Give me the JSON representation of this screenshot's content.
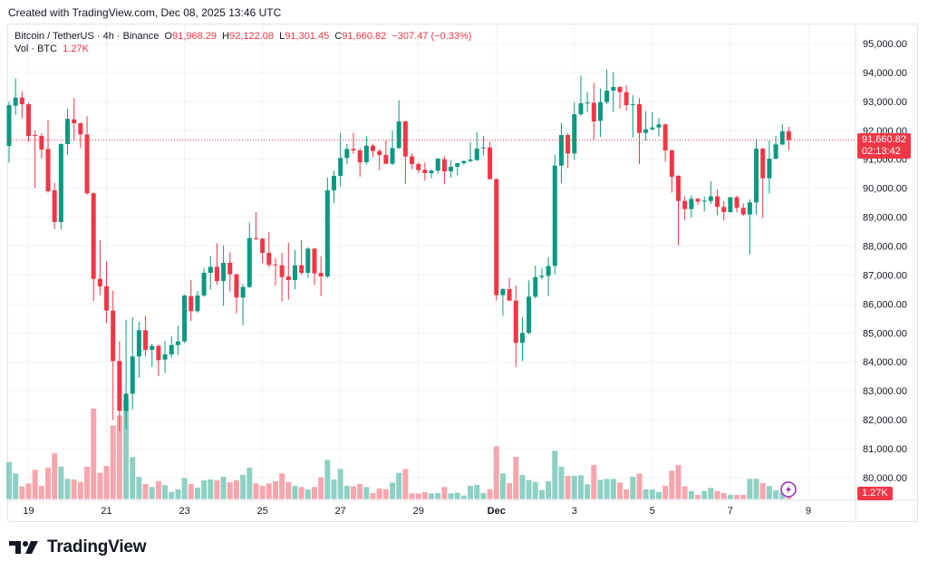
{
  "credit": "Created with TradingView.com, Dec 08, 2025 13:46 UTC",
  "legend": {
    "symbol": "Bitcoin / TetherUS · 4h · Binance",
    "o_label": "O",
    "o_value": "91,968.29",
    "h_label": "H",
    "h_value": "92,122.08",
    "l_label": "L",
    "l_value": "91,301.45",
    "c_label": "C",
    "c_value": "91,660.82",
    "change": "−307.47 (−0.33%)",
    "vol_label": "Vol · BTC",
    "vol_value": "1.27K"
  },
  "price_tag": {
    "price": "91,660.82",
    "countdown": "02:13:42"
  },
  "volume_tag": "1.27K",
  "logo_text": "TradingView",
  "colors": {
    "up": "#089981",
    "down": "#f23645",
    "up_volume": "#8ed1c4",
    "down_volume": "#f7a6ad",
    "grid": "#f0f3fa",
    "alert_icon": "#9c27b0"
  },
  "chart_data": {
    "type": "candlestick",
    "interval": "4h",
    "ylim": [
      79300,
      95500
    ],
    "y_ticks": [
      "80,000.00",
      "81,000.00",
      "82,000.00",
      "83,000.00",
      "84,000.00",
      "85,000.00",
      "86,000.00",
      "87,000.00",
      "88,000.00",
      "89,000.00",
      "90,000.00",
      "91,000.00",
      "92,000.00",
      "93,000.00",
      "94,000.00",
      "95,000.00"
    ],
    "x_ticks": [
      {
        "label": "19",
        "date": "2025-11-19 00:00"
      },
      {
        "label": "21",
        "date": "2025-11-21 00:00"
      },
      {
        "label": "23",
        "date": "2025-11-23 00:00"
      },
      {
        "label": "25",
        "date": "2025-11-25 00:00"
      },
      {
        "label": "27",
        "date": "2025-11-27 00:00"
      },
      {
        "label": "29",
        "date": "2025-11-29 00:00"
      },
      {
        "label": "Dec",
        "date": "2025-12-01 00:00"
      },
      {
        "label": "3",
        "date": "2025-12-03 00:00"
      },
      {
        "label": "5",
        "date": "2025-12-05 00:00"
      },
      {
        "label": "7",
        "date": "2025-12-07 00:00"
      },
      {
        "label": "9",
        "date": "2025-12-09 00:00"
      }
    ],
    "last_price": 91660.82,
    "columns": [
      "time",
      "open",
      "high",
      "low",
      "close",
      "volume_k"
    ],
    "candles": [
      [
        "2025-11-18 12:00",
        91461,
        92985,
        90887,
        92870,
        6.47
      ],
      [
        "2025-11-18 16:00",
        92850,
        93789,
        92536,
        93131,
        4.5
      ],
      [
        "2025-11-18 20:00",
        93131,
        93350,
        92411,
        92902,
        2.23
      ],
      [
        "2025-11-19 00:00",
        92902,
        92960,
        91618,
        91806,
        2.76
      ],
      [
        "2025-11-19 04:00",
        91837,
        91993,
        89999,
        91806,
        5.14
      ],
      [
        "2025-11-19 08:00",
        91806,
        91900,
        91023,
        91336,
        2.33
      ],
      [
        "2025-11-19 12:00",
        91357,
        92348,
        89843,
        89895,
        5.51
      ],
      [
        "2025-11-19 16:00",
        89926,
        90187,
        88590,
        88830,
        8.06
      ],
      [
        "2025-11-19 20:00",
        88830,
        91550,
        88569,
        91524,
        5.72
      ],
      [
        "2025-11-20 00:00",
        91524,
        92745,
        91158,
        92401,
        3.55
      ],
      [
        "2025-11-20 04:00",
        92380,
        93111,
        91649,
        92244,
        3.45
      ],
      [
        "2025-11-20 08:00",
        92244,
        92280,
        91388,
        91858,
        3.02
      ],
      [
        "2025-11-20 12:00",
        91858,
        92484,
        89780,
        89822,
        5.67
      ],
      [
        "2025-11-20 16:00",
        89822,
        89870,
        86095,
        86868,
        15.9
      ],
      [
        "2025-11-20 20:00",
        86868,
        88204,
        86304,
        86607,
        4.61
      ],
      [
        "2025-11-21 00:00",
        86607,
        87473,
        85333,
        85771,
        5.83
      ],
      [
        "2025-11-21 04:00",
        85771,
        86461,
        81992,
        84028,
        12.93
      ],
      [
        "2025-11-21 08:00",
        84028,
        84706,
        81600,
        82305,
        14.68
      ],
      [
        "2025-11-21 12:00",
        82305,
        85458,
        81680,
        82900,
        17.5
      ],
      [
        "2025-11-21 16:00",
        82900,
        85542,
        82357,
        84185,
        7.37
      ],
      [
        "2025-11-21 20:00",
        84185,
        85385,
        83454,
        85093,
        3.92
      ],
      [
        "2025-11-22 00:00",
        85093,
        85594,
        84185,
        84414,
        2.65
      ],
      [
        "2025-11-22 04:00",
        84414,
        84620,
        83819,
        84550,
        2.12
      ],
      [
        "2025-11-22 08:00",
        84550,
        84600,
        83506,
        84059,
        3.13
      ],
      [
        "2025-11-22 12:00",
        84080,
        84727,
        83610,
        84258,
        2.44
      ],
      [
        "2025-11-22 16:00",
        84258,
        84884,
        84150,
        84581,
        1.27
      ],
      [
        "2025-11-22 20:00",
        84581,
        85250,
        84237,
        84706,
        1.7
      ],
      [
        "2025-11-23 00:00",
        84706,
        86320,
        84654,
        86293,
        3.71
      ],
      [
        "2025-11-23 04:00",
        86272,
        86826,
        85416,
        85750,
        2.65
      ],
      [
        "2025-11-23 08:00",
        85750,
        86450,
        85700,
        86293,
        2.01
      ],
      [
        "2025-11-23 12:00",
        86293,
        87233,
        86250,
        87076,
        3.29
      ],
      [
        "2025-11-23 16:00",
        87076,
        87661,
        86502,
        87285,
        3.45
      ],
      [
        "2025-11-23 20:00",
        87285,
        88099,
        86669,
        86794,
        3.29
      ],
      [
        "2025-11-24 00:00",
        86794,
        88026,
        85938,
        87421,
        3.92
      ],
      [
        "2025-11-24 04:00",
        87421,
        87786,
        86429,
        87024,
        2.97
      ],
      [
        "2025-11-24 08:00",
        87024,
        87050,
        85677,
        86220,
        3.29
      ],
      [
        "2025-11-24 12:00",
        86220,
        86690,
        85260,
        86586,
        4.24
      ],
      [
        "2025-11-24 16:00",
        86586,
        88809,
        86550,
        88277,
        5.51
      ],
      [
        "2025-11-24 20:00",
        88277,
        89175,
        88200,
        88246,
        2.76
      ],
      [
        "2025-11-25 00:00",
        88256,
        88280,
        87421,
        87765,
        2.33
      ],
      [
        "2025-11-25 04:00",
        87765,
        88486,
        87264,
        87348,
        2.76
      ],
      [
        "2025-11-25 08:00",
        87369,
        87577,
        86638,
        87337,
        3.13
      ],
      [
        "2025-11-25 12:00",
        87337,
        87765,
        86085,
        86930,
        4.5
      ],
      [
        "2025-11-25 16:00",
        86951,
        88120,
        86148,
        86826,
        3.02
      ],
      [
        "2025-11-25 20:00",
        86826,
        87859,
        86513,
        87337,
        2.33
      ],
      [
        "2025-11-26 00:00",
        87337,
        88204,
        87000,
        87076,
        2.12
      ],
      [
        "2025-11-26 04:00",
        87076,
        87964,
        86899,
        87911,
        1.7
      ],
      [
        "2025-11-26 08:00",
        87911,
        87930,
        86659,
        87055,
        2.12
      ],
      [
        "2025-11-26 12:00",
        87076,
        87650,
        86272,
        86951,
        3.82
      ],
      [
        "2025-11-26 16:00",
        86951,
        90365,
        86900,
        89926,
        6.89
      ],
      [
        "2025-11-26 20:00",
        89926,
        90605,
        89488,
        90428,
        3.45
      ],
      [
        "2025-11-27 00:00",
        90428,
        91910,
        90062,
        91044,
        5.3
      ],
      [
        "2025-11-27 04:00",
        91044,
        91524,
        90845,
        91357,
        2.33
      ],
      [
        "2025-11-27 08:00",
        91357,
        91910,
        91179,
        91305,
        2.23
      ],
      [
        "2025-11-27 12:00",
        91305,
        91380,
        90396,
        90897,
        2.65
      ],
      [
        "2025-11-27 16:00",
        90897,
        91785,
        90814,
        91471,
        2.12
      ],
      [
        "2025-11-27 20:00",
        91471,
        91540,
        91075,
        91284,
        1.06
      ],
      [
        "2025-11-28 00:00",
        91284,
        91367,
        90626,
        91148,
        1.86
      ],
      [
        "2025-11-28 04:00",
        91148,
        91649,
        90820,
        90845,
        1.75
      ],
      [
        "2025-11-28 08:00",
        90845,
        91993,
        90800,
        91388,
        2.92
      ],
      [
        "2025-11-28 12:00",
        91388,
        93038,
        91350,
        92307,
        4.61
      ],
      [
        "2025-11-28 16:00",
        92307,
        92330,
        90156,
        91096,
        5.3
      ],
      [
        "2025-11-28 20:00",
        91096,
        91200,
        90657,
        90835,
        1.01
      ],
      [
        "2025-11-29 00:00",
        90835,
        90890,
        90521,
        90626,
        1.01
      ],
      [
        "2025-11-29 04:00",
        90636,
        90887,
        90260,
        90521,
        1.22
      ],
      [
        "2025-11-29 08:00",
        90521,
        90640,
        90344,
        90605,
        1.01
      ],
      [
        "2025-11-29 12:00",
        90605,
        91040,
        90501,
        91023,
        1.06
      ],
      [
        "2025-11-29 16:00",
        91002,
        91106,
        90135,
        90584,
        2.12
      ],
      [
        "2025-11-29 20:00",
        90584,
        90970,
        90365,
        90741,
        1.01
      ],
      [
        "2025-11-30 00:00",
        90741,
        90870,
        90448,
        90866,
        1.11
      ],
      [
        "2025-11-30 04:00",
        90866,
        90960,
        90800,
        90939,
        0.64
      ],
      [
        "2025-11-30 08:00",
        90939,
        91597,
        90900,
        90991,
        2.33
      ],
      [
        "2025-11-30 12:00",
        90970,
        91931,
        90950,
        91367,
        2.49
      ],
      [
        "2025-11-30 16:00",
        91380,
        91806,
        91127,
        91409,
        1.06
      ],
      [
        "2025-11-30 20:00",
        91409,
        91600,
        90300,
        90313,
        1.75
      ],
      [
        "2025-12-01 00:00",
        90313,
        90350,
        86116,
        86304,
        9.28
      ],
      [
        "2025-12-01 04:00",
        86304,
        86550,
        85594,
        86513,
        4.5
      ],
      [
        "2025-12-01 08:00",
        86513,
        86899,
        86100,
        86116,
        2.81
      ],
      [
        "2025-12-01 12:00",
        86116,
        86638,
        83819,
        84654,
        7.42
      ],
      [
        "2025-12-01 16:00",
        84654,
        85542,
        84028,
        84999,
        4.24
      ],
      [
        "2025-12-01 20:00",
        84999,
        86815,
        84950,
        86252,
        3.34
      ],
      [
        "2025-12-02 00:00",
        86252,
        87316,
        86189,
        86930,
        3.02
      ],
      [
        "2025-12-02 04:00",
        86930,
        87233,
        86850,
        86972,
        1.59
      ],
      [
        "2025-12-02 08:00",
        86972,
        87609,
        86272,
        87316,
        3.13
      ],
      [
        "2025-12-02 12:00",
        87316,
        91158,
        87024,
        90782,
        8.48
      ],
      [
        "2025-12-02 16:00",
        90782,
        92254,
        90166,
        91837,
        5.67
      ],
      [
        "2025-12-02 20:00",
        91837,
        91900,
        90689,
        91200,
        4.08
      ],
      [
        "2025-12-03 00:00",
        91200,
        92975,
        90970,
        92557,
        4.08
      ],
      [
        "2025-12-03 04:00",
        92557,
        93894,
        92500,
        92933,
        4.19
      ],
      [
        "2025-12-03 08:00",
        92950,
        93319,
        92620,
        92960,
        2.6
      ],
      [
        "2025-12-03 12:00",
        92954,
        93633,
        91680,
        92307,
        5.99
      ],
      [
        "2025-12-03 16:00",
        92328,
        93445,
        91774,
        92975,
        3.39
      ],
      [
        "2025-12-03 20:00",
        92975,
        94102,
        92900,
        93372,
        3.55
      ],
      [
        "2025-12-04 00:00",
        93372,
        94000,
        92641,
        93497,
        3.55
      ],
      [
        "2025-12-04 04:00",
        93497,
        93520,
        92745,
        93319,
        2.92
      ],
      [
        "2025-12-04 08:00",
        93319,
        93559,
        92693,
        92870,
        1.7
      ],
      [
        "2025-12-04 12:00",
        92880,
        93215,
        91753,
        92901,
        3.92
      ],
      [
        "2025-12-04 16:00",
        92901,
        93110,
        90845,
        91910,
        4.5
      ],
      [
        "2025-12-04 20:00",
        91910,
        92661,
        91649,
        92035,
        1.7
      ],
      [
        "2025-12-05 00:00",
        92035,
        92640,
        91990,
        92098,
        1.7
      ],
      [
        "2025-12-05 04:00",
        92098,
        92432,
        91784,
        92202,
        1.27
      ],
      [
        "2025-12-05 08:00",
        92202,
        92230,
        90918,
        91304,
        2.33
      ],
      [
        "2025-12-05 12:00",
        91304,
        91350,
        89843,
        90396,
        4.98
      ],
      [
        "2025-12-05 16:00",
        90427,
        90450,
        88026,
        89561,
        5.99
      ],
      [
        "2025-12-05 20:00",
        89561,
        89717,
        88882,
        89279,
        2.23
      ],
      [
        "2025-12-06 00:00",
        89279,
        89750,
        88986,
        89634,
        1.43
      ],
      [
        "2025-12-06 04:00",
        89634,
        89660,
        89435,
        89540,
        0.74
      ],
      [
        "2025-12-06 08:00",
        89550,
        89717,
        89195,
        89571,
        1.43
      ],
      [
        "2025-12-06 12:00",
        89561,
        90239,
        89456,
        89717,
        1.96
      ],
      [
        "2025-12-06 16:00",
        89717,
        89947,
        89070,
        89352,
        1.43
      ],
      [
        "2025-12-06 20:00",
        89352,
        89561,
        88882,
        89174,
        1.06
      ],
      [
        "2025-12-07 00:00",
        89174,
        89700,
        89150,
        89686,
        0.74
      ],
      [
        "2025-12-07 04:00",
        89686,
        89749,
        89174,
        89320,
        0.74
      ],
      [
        "2025-12-07 08:00",
        89320,
        89477,
        89039,
        89091,
        0.74
      ],
      [
        "2025-12-07 12:00",
        89091,
        89613,
        87713,
        89508,
        3.55
      ],
      [
        "2025-12-07 16:00",
        89508,
        91701,
        89091,
        91366,
        3.55
      ],
      [
        "2025-12-07 20:00",
        91366,
        91400,
        88966,
        90344,
        2.81
      ],
      [
        "2025-12-08 00:00",
        90344,
        91649,
        89821,
        91022,
        2.33
      ],
      [
        "2025-12-08 04:00",
        91022,
        91805,
        91000,
        91513,
        1.54
      ],
      [
        "2025-12-08 08:00",
        91513,
        92223,
        91480,
        91968,
        1.17
      ],
      [
        "2025-12-08 12:00",
        91968.29,
        92122.08,
        91301.45,
        91660.82,
        1.27
      ]
    ]
  }
}
